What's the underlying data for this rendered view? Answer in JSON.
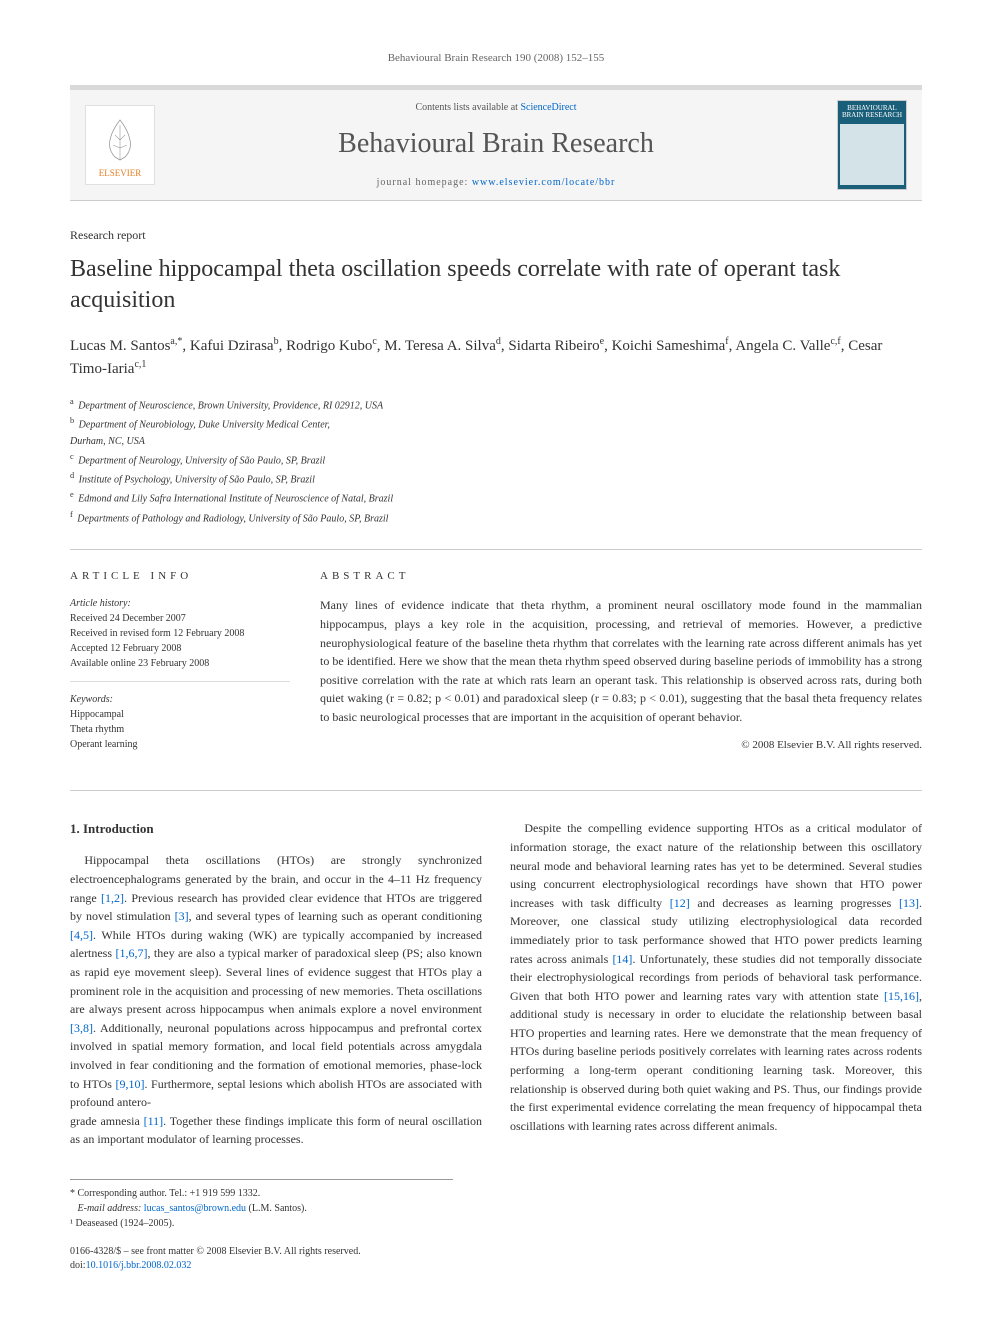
{
  "header_citation": "Behavioural Brain Research 190 (2008) 152–155",
  "journal_box": {
    "contents_text": "Contents lists available at ",
    "contents_link": "ScienceDirect",
    "journal_name": "Behavioural Brain Research",
    "homepage_label": "journal homepage: ",
    "homepage_url": "www.elsevier.com/locate/bbr",
    "publisher": "ELSEVIER",
    "cover_title": "BEHAVIOURAL BRAIN RESEARCH"
  },
  "article_type": "Research report",
  "title": "Baseline hippocampal theta oscillation speeds correlate with rate of operant task acquisition",
  "authors_html": "Lucas M. Santos<sup>a,*</sup>, Kafui Dzirasa<sup>b</sup>, Rodrigo Kubo<sup>c</sup>, M. Teresa A. Silva<sup>d</sup>, Sidarta Ribeiro<sup>e</sup>, Koichi Sameshima<sup>f</sup>, Angela C. Valle<sup>c,f</sup>, Cesar Timo-Iaria<sup>c,1</sup>",
  "affiliations": [
    {
      "sup": "a",
      "text": "Department of Neuroscience, Brown University, Providence, RI 02912, USA"
    },
    {
      "sup": "b",
      "text": "Department of Neurobiology, Duke University Medical Center,"
    },
    {
      "sup": "",
      "text": "Durham, NC, USA"
    },
    {
      "sup": "c",
      "text": "Department of Neurology, University of São Paulo, SP, Brazil"
    },
    {
      "sup": "d",
      "text": "Institute of Psychology, University of São Paulo, SP, Brazil"
    },
    {
      "sup": "e",
      "text": "Edmond and Lily Safra International Institute of Neuroscience of Natal, Brazil"
    },
    {
      "sup": "f",
      "text": "Departments of Pathology and Radiology, University of São Paulo, SP, Brazil"
    }
  ],
  "article_info": {
    "heading": "article info",
    "history_label": "Article history:",
    "history": [
      "Received 24 December 2007",
      "Received in revised form 12 February 2008",
      "Accepted 12 February 2008",
      "Available online 23 February 2008"
    ],
    "keywords_label": "Keywords:",
    "keywords": [
      "Hippocampal",
      "Theta rhythm",
      "Operant learning"
    ]
  },
  "abstract": {
    "heading": "abstract",
    "text": "Many lines of evidence indicate that theta rhythm, a prominent neural oscillatory mode found in the mammalian hippocampus, plays a key role in the acquisition, processing, and retrieval of memories. However, a predictive neurophysiological feature of the baseline theta rhythm that correlates with the learning rate across different animals has yet to be identified. Here we show that the mean theta rhythm speed observed during baseline periods of immobility has a strong positive correlation with the rate at which rats learn an operant task. This relationship is observed across rats, during both quiet waking (r = 0.82; p < 0.01) and paradoxical sleep (r = 0.83; p < 0.01), suggesting that the basal theta frequency relates to basic neurological processes that are important in the acquisition of operant behavior.",
    "copyright": "© 2008 Elsevier B.V. All rights reserved."
  },
  "section1": {
    "heading": "1. Introduction",
    "p1": "Hippocampal theta oscillations (HTOs) are strongly synchronized electroencephalograms generated by the brain, and occur in the 4–11 Hz frequency range [1,2]. Previous research has provided clear evidence that HTOs are triggered by novel stimulation [3], and several types of learning such as operant conditioning [4,5]. While HTOs during waking (WK) are typically accompanied by increased alertness [1,6,7], they are also a typical marker of paradoxical sleep (PS; also known as rapid eye movement sleep). Several lines of evidence suggest that HTOs play a prominent role in the acquisition and processing of new memories. Theta oscillations are always present across hippocampus when animals explore a novel environment [3,8]. Additionally, neuronal populations across hippocampus and prefrontal cortex involved in spatial memory formation, and local field potentials across amygdala involved in fear conditioning and the formation of emotional memories, phase-lock to HTOs [9,10]. Furthermore, septal lesions which abolish HTOs are associated with profound antero-",
    "p1b": "grade amnesia [11]. Together these findings implicate this form of neural oscillation as an important modulator of learning processes.",
    "p2": "Despite the compelling evidence supporting HTOs as a critical modulator of information storage, the exact nature of the relationship between this oscillatory neural mode and behavioral learning rates has yet to be determined. Several studies using concurrent electrophysiological recordings have shown that HTO power increases with task difficulty [12] and decreases as learning progresses [13]. Moreover, one classical study utilizing electrophysiological data recorded immediately prior to task performance showed that HTO power predicts learning rates across animals [14]. Unfortunately, these studies did not temporally dissociate their electrophysiological recordings from periods of behavioral task performance. Given that both HTO power and learning rates vary with attention state [15,16], additional study is necessary in order to elucidate the relationship between basal HTO properties and learning rates. Here we demonstrate that the mean frequency of HTOs during baseline periods positively correlates with learning rates across rodents performing a long-term operant conditioning learning task. Moreover, this relationship is observed during both quiet waking and PS. Thus, our findings provide the first experimental evidence correlating the mean frequency of hippocampal theta oscillations with learning rates across different animals."
  },
  "footnotes": {
    "corresponding": "* Corresponding author. Tel.: +1 919 599 1332.",
    "email_label": "E-mail address: ",
    "email": "lucas_santos@brown.edu",
    "email_suffix": " (L.M. Santos).",
    "deceased": "¹ Deaseased (1924–2005)."
  },
  "footer": {
    "issn_line": "0166-4328/$ – see front matter © 2008 Elsevier B.V. All rights reserved.",
    "doi_label": "doi:",
    "doi": "10.1016/j.bbr.2008.02.032"
  },
  "colors": {
    "link": "#0066cc",
    "orange": "#e67e22",
    "cover_bg": "#1a5f7a",
    "border_light": "#d9d9d9"
  }
}
